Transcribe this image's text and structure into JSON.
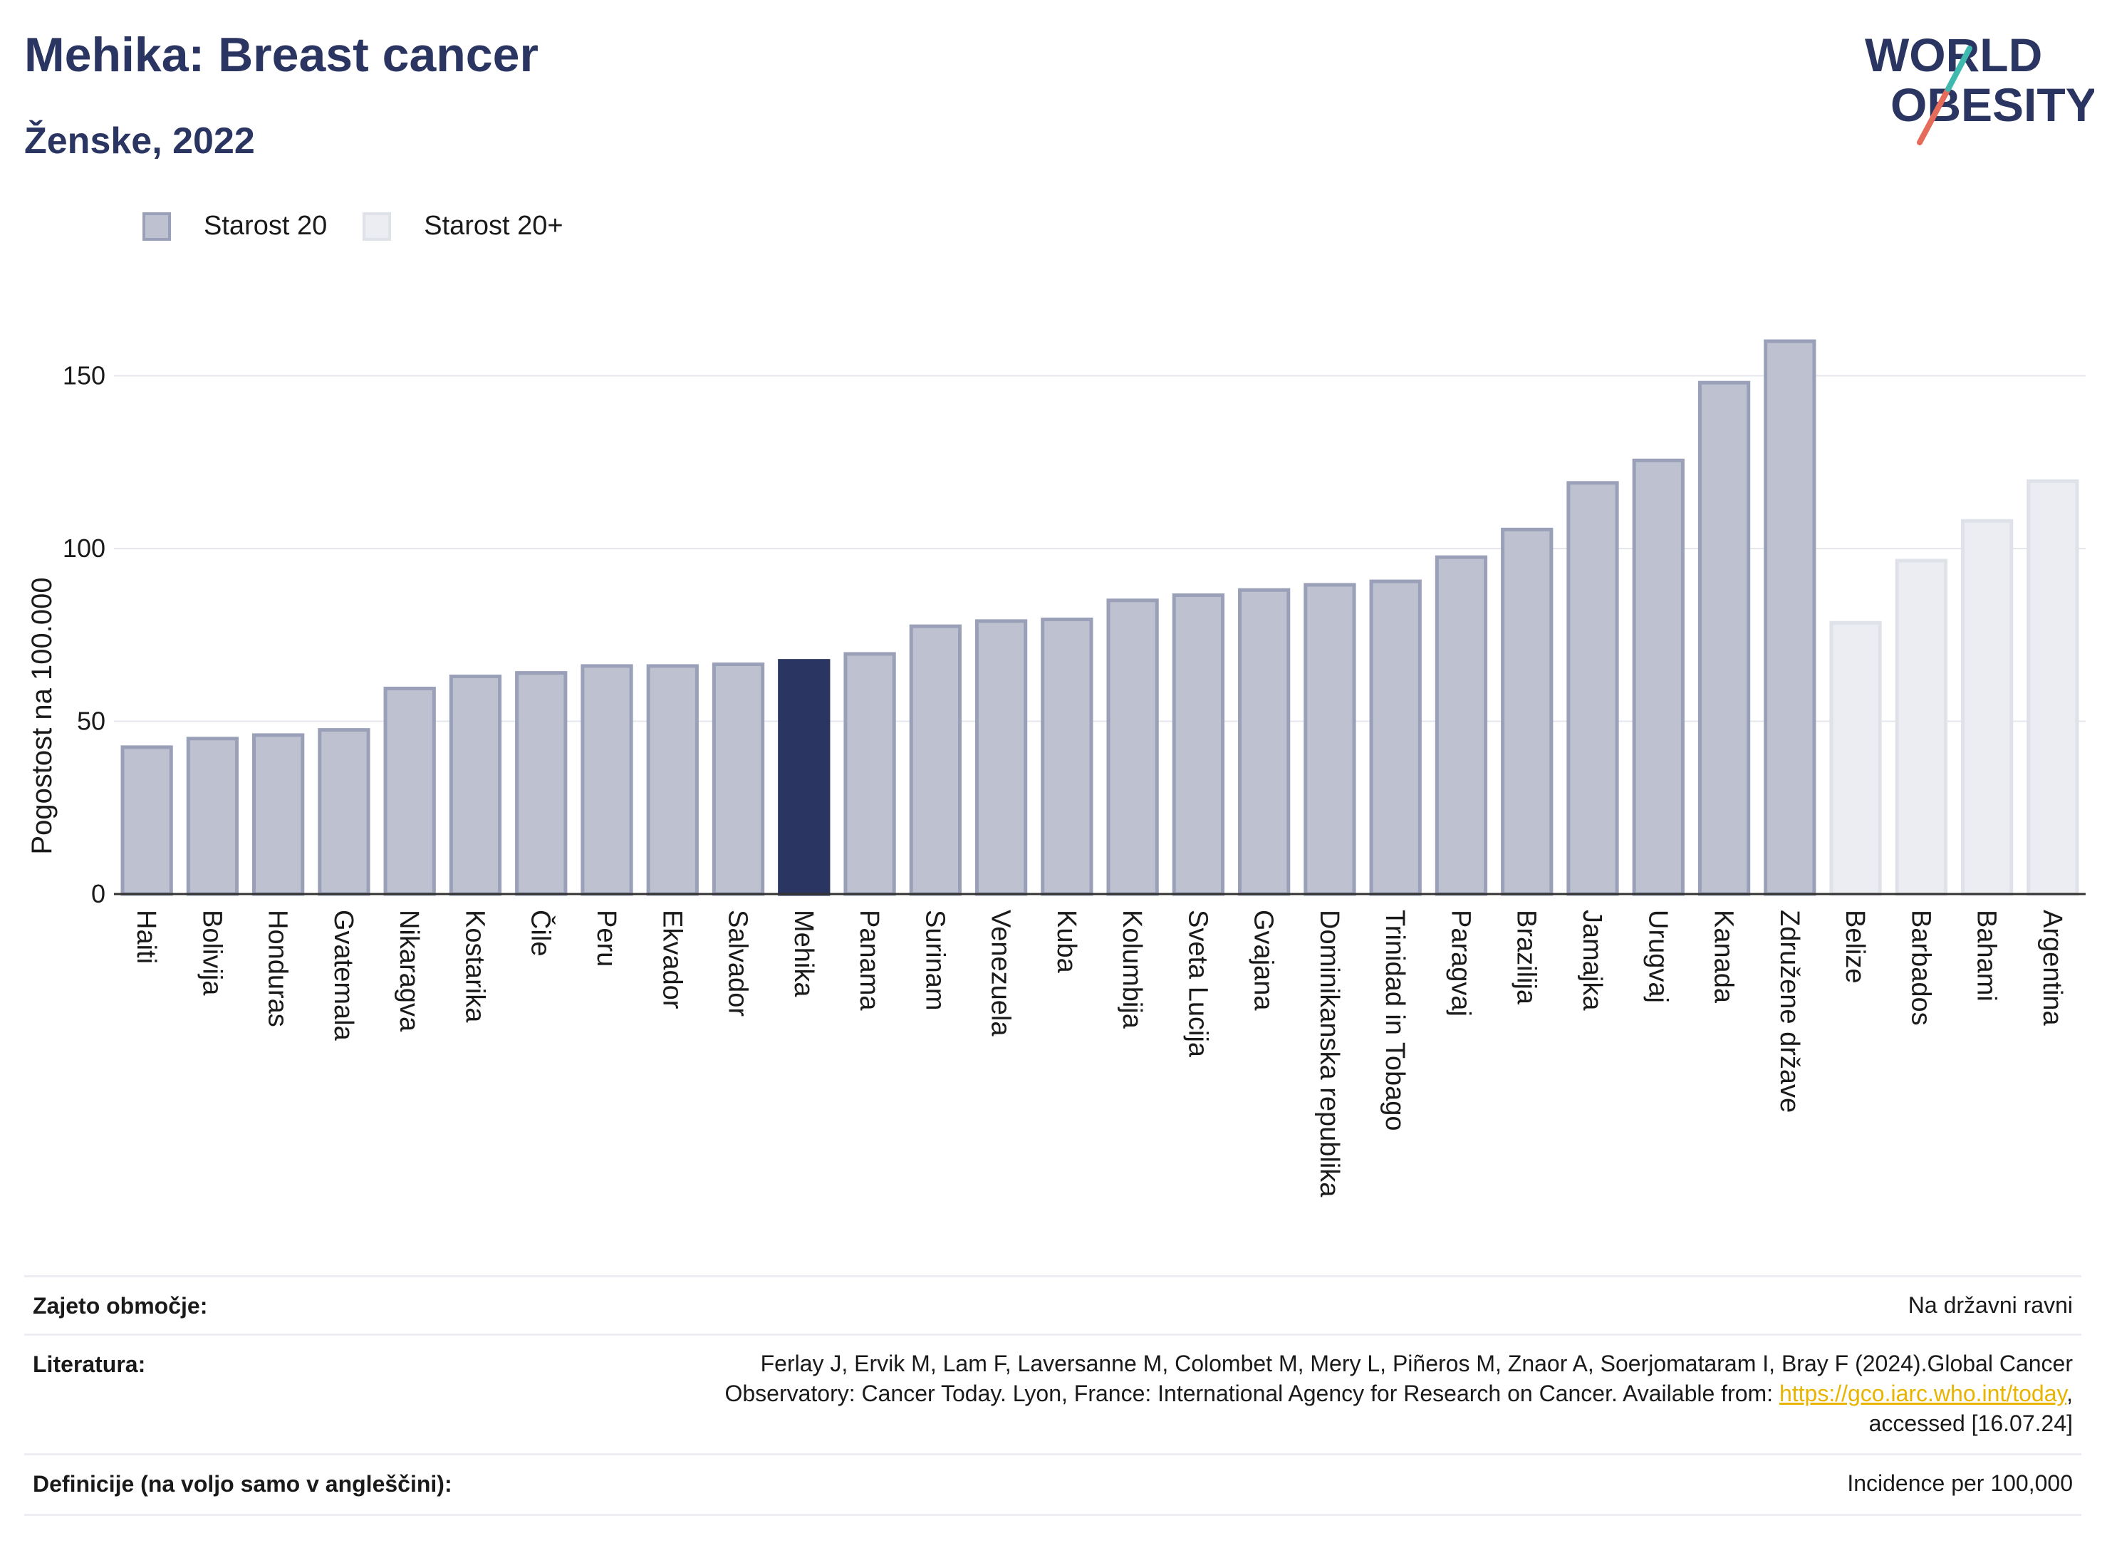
{
  "header": {
    "title": "Mehika: Breast cancer",
    "subtitle": "Ženske, 2022"
  },
  "logo": {
    "line1": "WORLD",
    "line2": "OBESITY"
  },
  "legend": [
    {
      "label": "Starost 20",
      "color": "#bec1cf"
    },
    {
      "label": "Starost 20+",
      "color": "#ecedf2"
    }
  ],
  "chart_data": {
    "type": "bar",
    "ylabel": "Pogostost na 100.000",
    "ylim": [
      0,
      170
    ],
    "yticks": [
      0,
      50,
      100,
      150
    ],
    "grid": true,
    "highlight": "Mehika",
    "highlight_color": "#2b3561",
    "categories": [
      "Haiti",
      "Bolivija",
      "Honduras",
      "Gvatemala",
      "Nikaragva",
      "Kostarika",
      "Čile",
      "Peru",
      "Ekvador",
      "Salvador",
      "Mehika",
      "Panama",
      "Surinam",
      "Venezuela",
      "Kuba",
      "Kolumbija",
      "Sveta Lucija",
      "Gvajana",
      "Dominikanska republika",
      "Trinidad in Tobago",
      "Paragvaj",
      "Brazilija",
      "Jamajka",
      "Urugvaj",
      "Kanada",
      "Združene države",
      "Belize",
      "Barbados",
      "Bahami",
      "Argentina"
    ],
    "values": [
      42.5,
      45,
      46,
      47.5,
      59.5,
      63,
      64,
      66,
      66,
      66.5,
      67.5,
      69.5,
      77.5,
      79,
      79.5,
      85,
      86.5,
      88,
      89.5,
      90.5,
      97.5,
      105.5,
      119,
      125.5,
      148,
      160,
      78.5,
      96.5,
      108,
      119.5
    ],
    "series_group": [
      "Starost 20",
      "Starost 20",
      "Starost 20",
      "Starost 20",
      "Starost 20",
      "Starost 20",
      "Starost 20",
      "Starost 20",
      "Starost 20",
      "Starost 20",
      "Starost 20",
      "Starost 20",
      "Starost 20",
      "Starost 20",
      "Starost 20",
      "Starost 20",
      "Starost 20",
      "Starost 20",
      "Starost 20",
      "Starost 20",
      "Starost 20",
      "Starost 20",
      "Starost 20",
      "Starost 20",
      "Starost 20",
      "Starost 20",
      "Starost 20+",
      "Starost 20+",
      "Starost 20+",
      "Starost 20+"
    ]
  },
  "meta": {
    "coverage_label": "Zajeto območje:",
    "coverage_value": "Na državni ravni",
    "literature_label": "Literatura:",
    "literature_line1": "Ferlay J, Ervik M, Lam F, Laversanne M, Colombet M, Mery L, Piñeros M, Znaor A, Soerjomataram I, Bray F (2024).Global Cancer",
    "literature_line2_pre": "Observatory: Cancer Today. Lyon, France: International Agency for Research on Cancer. Available from: ",
    "literature_link": "https://gco.iarc.who.int/today",
    "literature_line2_post": ",",
    "literature_line3": "accessed [16.07.24]",
    "definitions_label": "Definicije (na voljo samo v angleščini):",
    "definitions_value": "Incidence per 100,000"
  }
}
